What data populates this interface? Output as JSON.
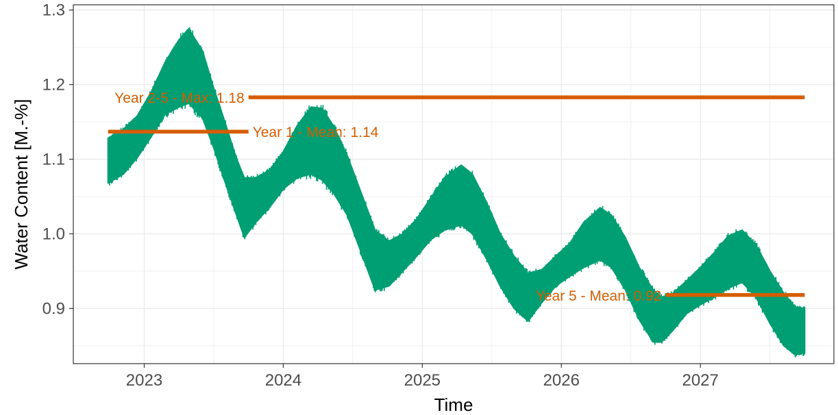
{
  "chart_data": {
    "type": "line",
    "title": "",
    "xlabel": "Time",
    "ylabel": "Water Content [M.-%]",
    "xlim": [
      2022.49,
      2027.96
    ],
    "ylim": [
      0.826,
      1.307
    ],
    "x_ticks": [
      2023,
      2024,
      2025,
      2026,
      2027
    ],
    "x_tick_labels": [
      "2023",
      "2024",
      "2025",
      "2026",
      "2027"
    ],
    "y_ticks": [
      0.9,
      1.0,
      1.1,
      1.2,
      1.3
    ],
    "y_tick_labels": [
      "0.9",
      "1.0",
      "1.1",
      "1.2",
      "1.3"
    ],
    "grid": true,
    "legend": "none",
    "colors": {
      "series": "#009E73",
      "reference": "#D55E00",
      "panel_border": "#333333",
      "grid": "#ebebeb"
    },
    "series": [
      {
        "color": "#009E73",
        "x": [
          2022.74,
          2022.85,
          2022.95,
          2023.05,
          2023.15,
          2023.25,
          2023.32,
          2023.42,
          2023.5,
          2023.58,
          2023.66,
          2023.72,
          2023.8,
          2023.9,
          2024.0,
          2024.1,
          2024.2,
          2024.28,
          2024.36,
          2024.46,
          2024.56,
          2024.66,
          2024.76,
          2024.86,
          2024.96,
          2025.06,
          2025.16,
          2025.28,
          2025.36,
          2025.46,
          2025.56,
          2025.66,
          2025.76,
          2025.86,
          2025.96,
          2026.06,
          2026.16,
          2026.28,
          2026.36,
          2026.46,
          2026.56,
          2026.66,
          2026.72,
          2026.8,
          2026.9,
          2027.0,
          2027.1,
          2027.2,
          2027.3,
          2027.4,
          2027.5,
          2027.6,
          2027.68,
          2027.75
        ],
        "y_mid": [
          1.098,
          1.11,
          1.13,
          1.16,
          1.195,
          1.215,
          1.225,
          1.2,
          1.155,
          1.11,
          1.065,
          1.035,
          1.045,
          1.06,
          1.085,
          1.11,
          1.125,
          1.12,
          1.1,
          1.065,
          1.015,
          0.965,
          0.96,
          0.975,
          0.995,
          1.02,
          1.04,
          1.052,
          1.04,
          1.005,
          0.965,
          0.935,
          0.915,
          0.93,
          0.95,
          0.965,
          0.985,
          1.0,
          0.99,
          0.96,
          0.92,
          0.89,
          0.885,
          0.895,
          0.915,
          0.93,
          0.945,
          0.962,
          0.97,
          0.95,
          0.915,
          0.885,
          0.87,
          0.87
        ],
        "band_halfwidth": [
          0.03,
          0.03,
          0.028,
          0.03,
          0.035,
          0.045,
          0.05,
          0.045,
          0.04,
          0.04,
          0.038,
          0.04,
          0.03,
          0.025,
          0.025,
          0.035,
          0.045,
          0.048,
          0.045,
          0.04,
          0.04,
          0.04,
          0.03,
          0.025,
          0.025,
          0.028,
          0.035,
          0.04,
          0.04,
          0.038,
          0.035,
          0.035,
          0.032,
          0.022,
          0.02,
          0.022,
          0.03,
          0.035,
          0.035,
          0.035,
          0.035,
          0.035,
          0.03,
          0.025,
          0.022,
          0.025,
          0.03,
          0.035,
          0.035,
          0.035,
          0.035,
          0.035,
          0.032,
          0.03
        ]
      }
    ],
    "reference_lines": [
      {
        "label": "Year 2-5 - Max: 1.18",
        "value": 1.183,
        "x_start": 2023.75,
        "x_end": 2027.75,
        "label_side": "left"
      },
      {
        "label": "Year 1 - Mean: 1.14",
        "value": 1.137,
        "x_start": 2022.74,
        "x_end": 2023.75,
        "label_side": "right"
      },
      {
        "label": "Year 5 - Mean: 0.92",
        "value": 0.918,
        "x_start": 2026.75,
        "x_end": 2027.75,
        "label_side": "left"
      }
    ]
  }
}
